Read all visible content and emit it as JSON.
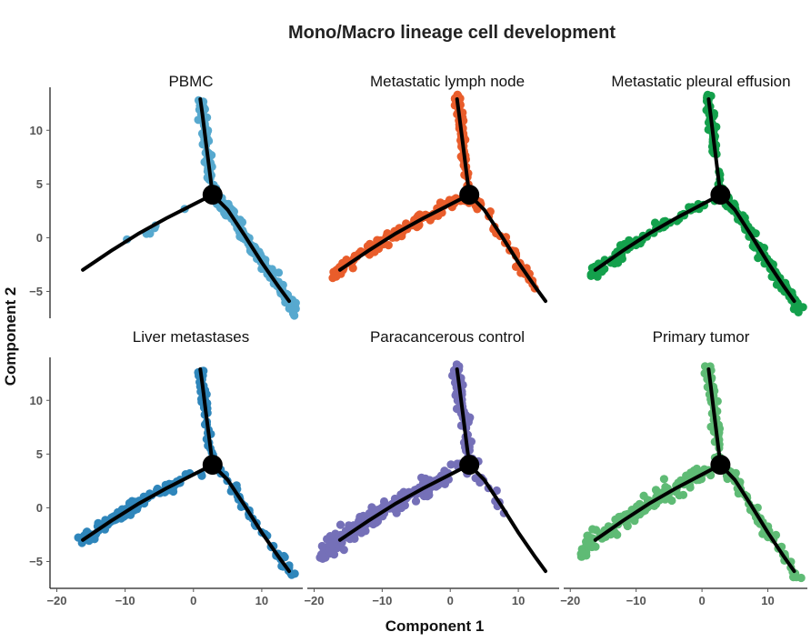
{
  "chart_data": {
    "type": "scatter",
    "title": "Mono/Macro lineage cell development",
    "xlabel": "Component 1",
    "ylabel": "Component 2",
    "xlim": [
      -21,
      16
    ],
    "ylim": [
      -7.5,
      14
    ],
    "x_ticks": [
      -20,
      -10,
      0,
      10
    ],
    "x_tick_labels": [
      "−20",
      "−10",
      "0",
      "10"
    ],
    "y_ticks": [
      -5,
      0,
      5,
      10
    ],
    "y_tick_labels": [
      "−5",
      "0",
      "5",
      "10"
    ],
    "branch_point": {
      "x": 2.8,
      "y": 4.0
    },
    "trajectory": {
      "upper": [
        [
          2.8,
          4.0
        ],
        [
          2.3,
          6.5
        ],
        [
          1.8,
          9.0
        ],
        [
          1.3,
          11.5
        ],
        [
          1.0,
          12.9
        ]
      ],
      "left": [
        [
          2.8,
          4.0
        ],
        [
          0,
          3.1
        ],
        [
          -4,
          1.8
        ],
        [
          -8,
          0.4
        ],
        [
          -12,
          -1.2
        ],
        [
          -16.2,
          -3.0
        ]
      ],
      "right": [
        [
          2.8,
          4.0
        ],
        [
          5,
          2.6
        ],
        [
          7.5,
          0.2
        ],
        [
          10,
          -2.3
        ],
        [
          12.5,
          -4.6
        ],
        [
          14,
          -5.9
        ]
      ]
    },
    "panels": [
      {
        "name": "PBMC",
        "color": "#57a9cf",
        "left_from": -11,
        "left_n": 6,
        "upper_n": 80,
        "right_n": 150,
        "right_to": 15,
        "spread": 0.55,
        "seed": 11
      },
      {
        "name": "Metastatic lymph node",
        "color": "#e95d2b",
        "left_from": -17.5,
        "left_n": 130,
        "upper_n": 95,
        "right_n": 40,
        "right_to": 12.5,
        "spread": 0.5,
        "seed": 23
      },
      {
        "name": "Metastatic pleural effusion",
        "color": "#14a04c",
        "left_from": -17,
        "left_n": 85,
        "upper_n": 60,
        "right_n": 130,
        "right_to": 15,
        "spread": 0.5,
        "seed": 37
      },
      {
        "name": "Liver metastases",
        "color": "#2f86bb",
        "left_from": -16.5,
        "left_n": 110,
        "upper_n": 55,
        "right_n": 50,
        "right_to": 15,
        "spread": 0.5,
        "seed": 41
      },
      {
        "name": "Paracancerous control",
        "color": "#7570b8",
        "left_from": -19,
        "left_n": 230,
        "upper_n": 80,
        "right_n": 14,
        "right_to": 8.5,
        "spread": 0.75,
        "seed": 53
      },
      {
        "name": "Primary tumor",
        "color": "#5fbb75",
        "left_from": -18.5,
        "left_n": 160,
        "upper_n": 70,
        "right_n": 60,
        "right_to": 15,
        "spread": 0.65,
        "seed": 67
      }
    ]
  }
}
